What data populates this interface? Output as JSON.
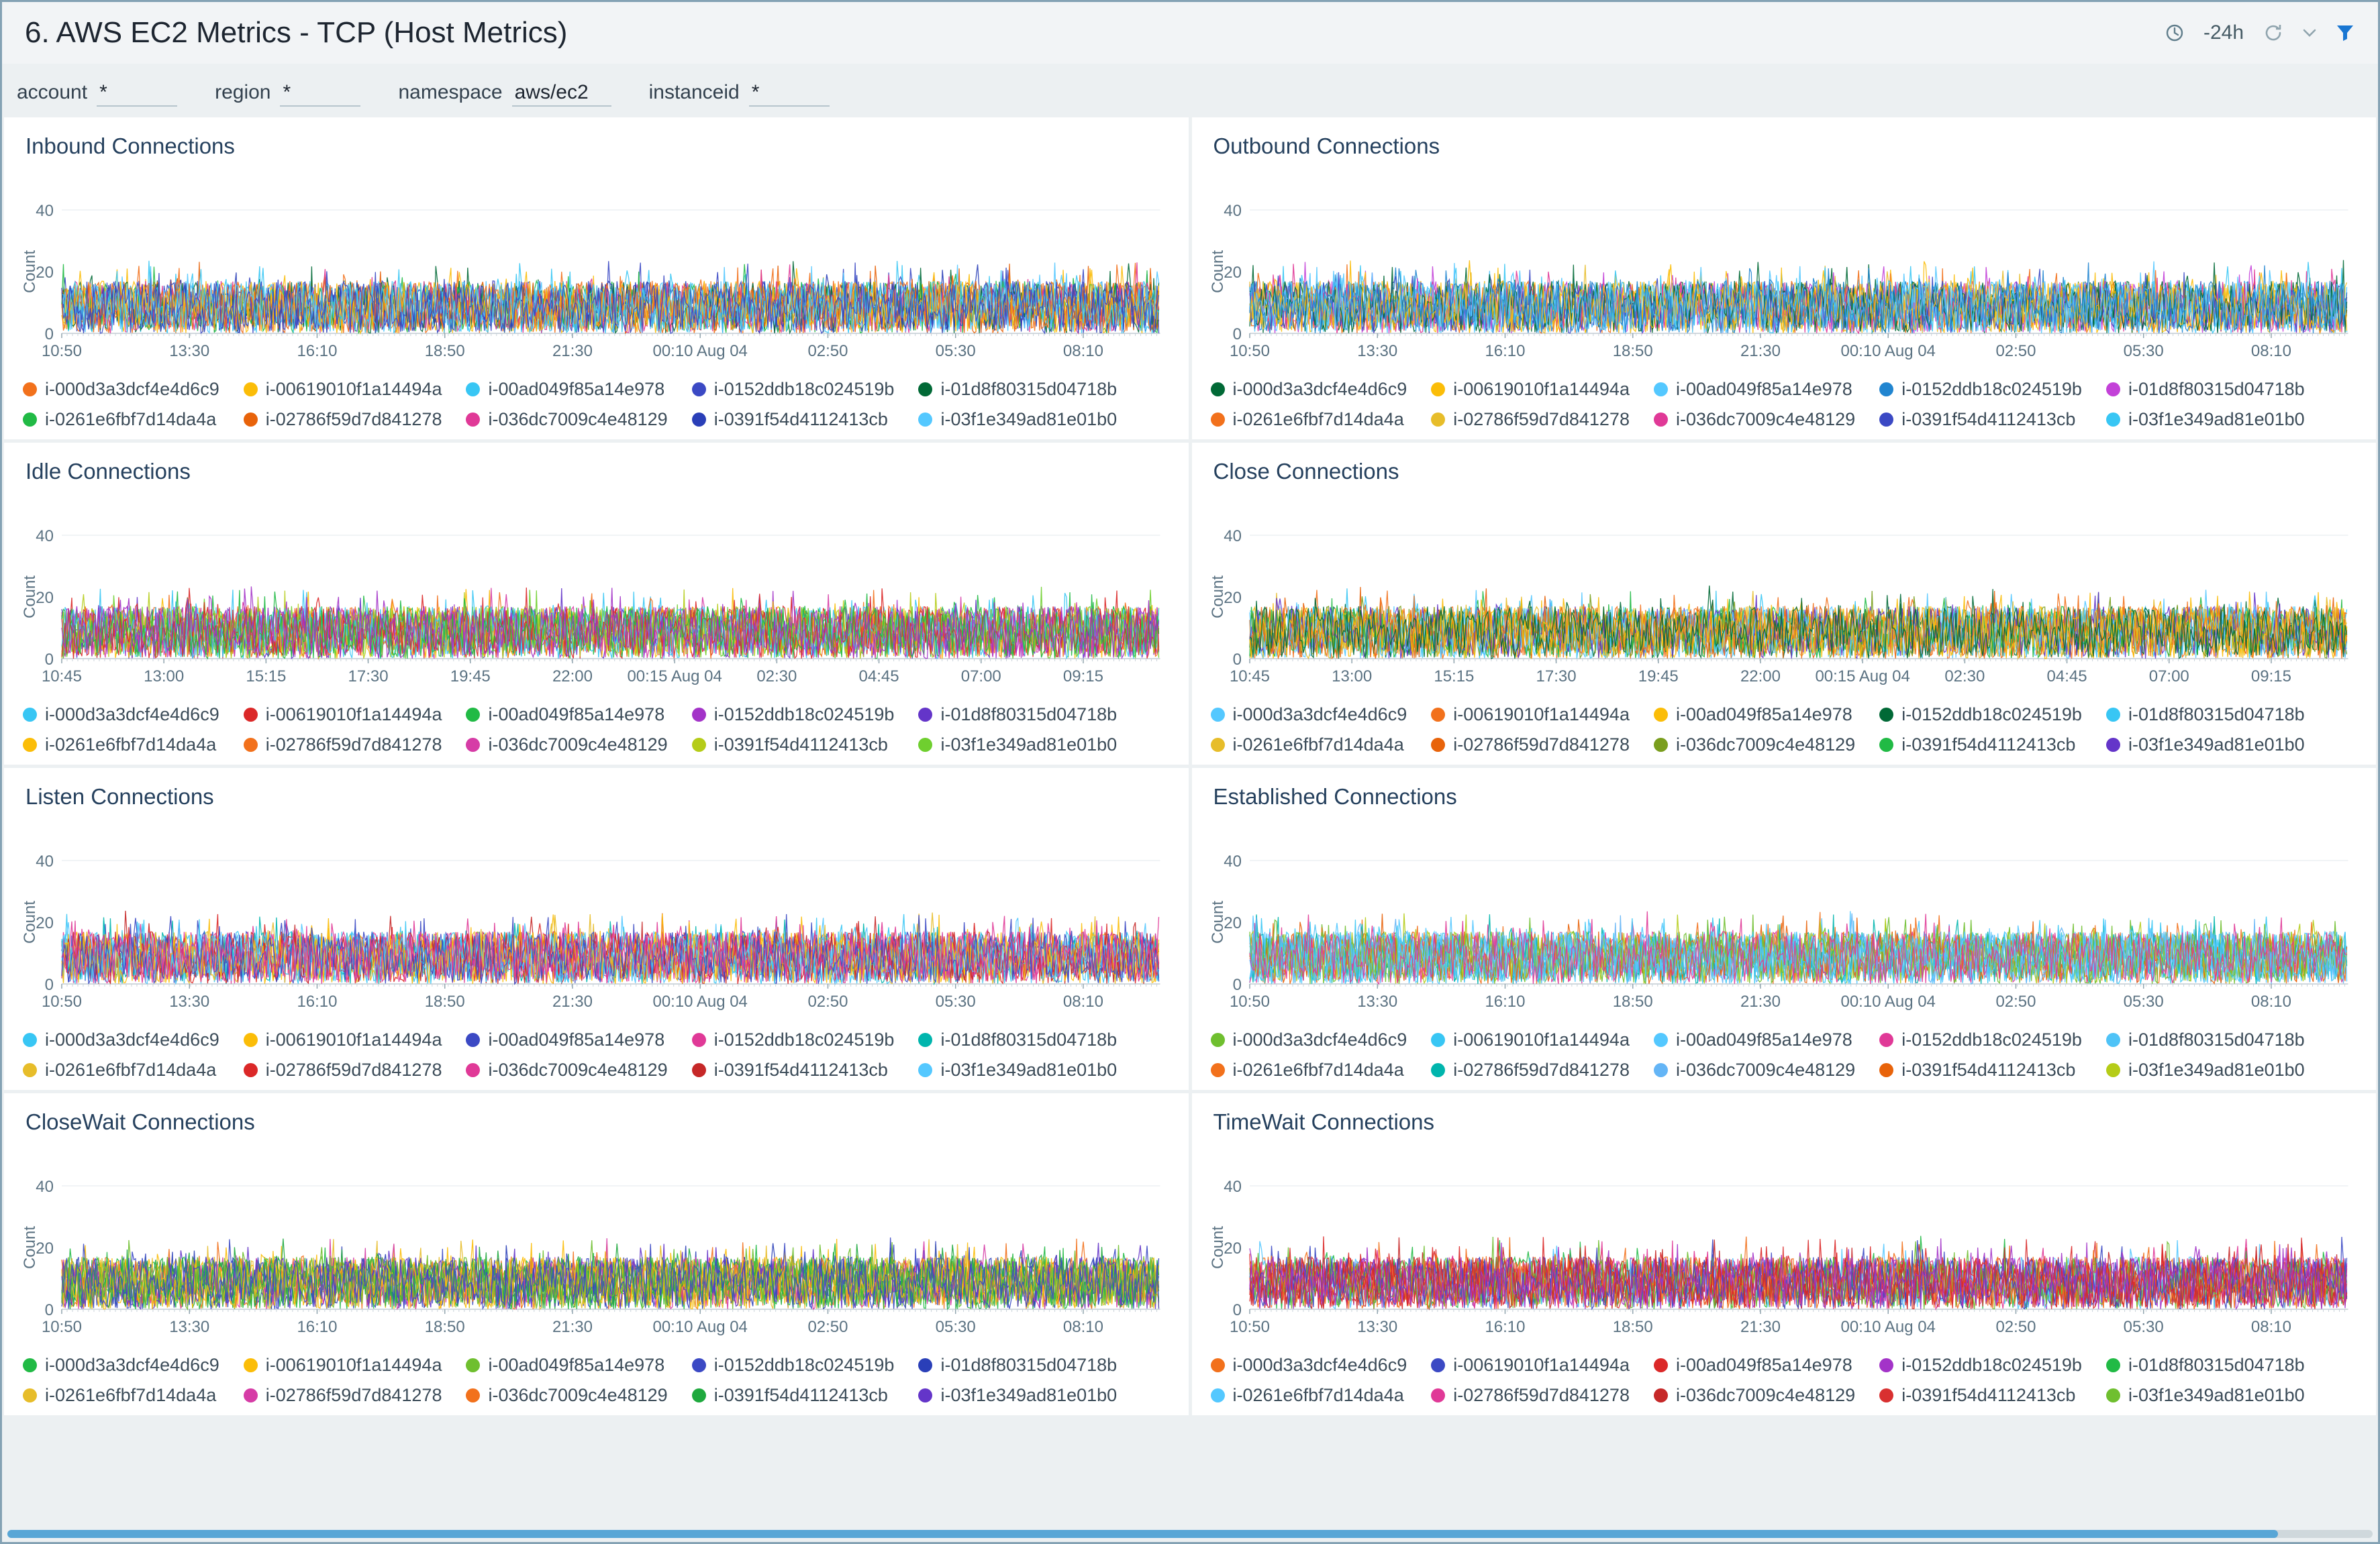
{
  "header": {
    "title": "6. AWS EC2 Metrics - TCP (Host Metrics)",
    "time_range": "-24h"
  },
  "icons": {
    "clock": "clock-icon",
    "refresh": "refresh-icon",
    "chevron": "chevron-down-icon",
    "filter": "filter-funnel-icon"
  },
  "filters": [
    {
      "label": "account",
      "value": "*"
    },
    {
      "label": "region",
      "value": "*"
    },
    {
      "label": "namespace",
      "value": "aws/ec2"
    },
    {
      "label": "instanceid",
      "value": "*"
    }
  ],
  "instances": [
    "i-000d3a3dcf4e4d6c9",
    "i-00619010f1a14494a",
    "i-00ad049f85a14e978",
    "i-0152ddb18c024519b",
    "i-01d8f80315d04718b",
    "i-0261e6fbf7d14da4a",
    "i-02786f59d7d841278",
    "i-036dc7009c4e48129",
    "i-0391f54d4112413cb",
    "i-03f1e349ad81e01b0"
  ],
  "chart_data": [
    {
      "type": "line",
      "title": "Inbound Connections",
      "ylabel": "Count",
      "ylim": [
        0,
        40
      ],
      "yticks": [
        0,
        20,
        40
      ],
      "xticks": [
        "10:50",
        "13:30",
        "16:10",
        "18:50",
        "21:30",
        "00:10 Aug 04",
        "02:50",
        "05:30",
        "08:10"
      ],
      "series": [
        "i-000d3a3dcf4e4d6c9",
        "i-00619010f1a14494a",
        "i-00ad049f85a14e978",
        "i-0152ddb18c024519b",
        "i-01d8f80315d04718b",
        "i-0261e6fbf7d14da4a",
        "i-02786f59d7d841278",
        "i-036dc7009c4e48129",
        "i-0391f54d4112413cb",
        "i-03f1e349ad81e01b0"
      ],
      "colors": [
        "#f2711c",
        "#fbbd08",
        "#38c6f4",
        "#3b49c4",
        "#016936",
        "#21ba45",
        "#e8630a",
        "#e03997",
        "#2a3fb8",
        "#54c8ff"
      ],
      "value_range": [
        0,
        22
      ],
      "pattern": "dense overlapping noisy series oscillating between 0 and ~20",
      "grid": "horizontal line at 40 only",
      "legend_position": "bottom"
    },
    {
      "type": "line",
      "title": "Outbound Connections",
      "ylabel": "Count",
      "ylim": [
        0,
        40
      ],
      "yticks": [
        0,
        20,
        40
      ],
      "xticks": [
        "10:50",
        "13:30",
        "16:10",
        "18:50",
        "21:30",
        "00:10 Aug 04",
        "02:50",
        "05:30",
        "08:10"
      ],
      "series": [
        "i-000d3a3dcf4e4d6c9",
        "i-00619010f1a14494a",
        "i-00ad049f85a14e978",
        "i-0152ddb18c024519b",
        "i-01d8f80315d04718b",
        "i-0261e6fbf7d14da4a",
        "i-02786f59d7d841278",
        "i-036dc7009c4e48129",
        "i-0391f54d4112413cb",
        "i-03f1e349ad81e01b0"
      ],
      "colors": [
        "#016936",
        "#fbbd08",
        "#54c8ff",
        "#2185d0",
        "#c341d8",
        "#f2711c",
        "#e7bd2a",
        "#e03997",
        "#3b49c4",
        "#38c6f4"
      ],
      "value_range": [
        0,
        22
      ],
      "pattern": "dense overlapping noisy series oscillating between 0 and ~20",
      "grid": "horizontal line at 40 only",
      "legend_position": "bottom"
    },
    {
      "type": "line",
      "title": "Idle Connections",
      "ylabel": "Count",
      "ylim": [
        0,
        40
      ],
      "yticks": [
        0,
        20,
        40
      ],
      "xticks": [
        "10:45",
        "13:00",
        "15:15",
        "17:30",
        "19:45",
        "22:00",
        "00:15 Aug 04",
        "02:30",
        "04:45",
        "07:00",
        "09:15"
      ],
      "series": [
        "i-000d3a3dcf4e4d6c9",
        "i-00619010f1a14494a",
        "i-00ad049f85a14e978",
        "i-0152ddb18c024519b",
        "i-01d8f80315d04718b",
        "i-0261e6fbf7d14da4a",
        "i-02786f59d7d841278",
        "i-036dc7009c4e48129",
        "i-0391f54d4112413cb",
        "i-03f1e349ad81e01b0"
      ],
      "colors": [
        "#38c6f4",
        "#db2828",
        "#21ba45",
        "#a333c8",
        "#6435c9",
        "#fbbd08",
        "#f2711c",
        "#d63ca6",
        "#b5cc18",
        "#6fcf2f"
      ],
      "value_range": [
        0,
        22
      ],
      "pattern": "dense overlapping noisy series oscillating between 0 and ~22",
      "grid": "horizontal line at 40 only",
      "legend_position": "bottom"
    },
    {
      "type": "line",
      "title": "Close Connections",
      "ylabel": "Count",
      "ylim": [
        0,
        40
      ],
      "yticks": [
        0,
        20,
        40
      ],
      "xticks": [
        "10:45",
        "13:00",
        "15:15",
        "17:30",
        "19:45",
        "22:00",
        "00:15 Aug 04",
        "02:30",
        "04:45",
        "07:00",
        "09:15"
      ],
      "series": [
        "i-000d3a3dcf4e4d6c9",
        "i-00619010f1a14494a",
        "i-00ad049f85a14e978",
        "i-0152ddb18c024519b",
        "i-01d8f80315d04718b",
        "i-0261e6fbf7d14da4a",
        "i-02786f59d7d841278",
        "i-036dc7009c4e48129",
        "i-0391f54d4112413cb",
        "i-03f1e349ad81e01b0"
      ],
      "colors": [
        "#54c8ff",
        "#f2711c",
        "#fbbd08",
        "#016936",
        "#38c6f4",
        "#e7bd2a",
        "#e8630a",
        "#7a9e1e",
        "#21ba45",
        "#6435c9"
      ],
      "value_range": [
        0,
        22
      ],
      "pattern": "dense overlapping noisy series oscillating between 0 and ~22",
      "grid": "horizontal line at 40 only",
      "legend_position": "bottom"
    },
    {
      "type": "line",
      "title": "Listen Connections",
      "ylabel": "Count",
      "ylim": [
        0,
        40
      ],
      "yticks": [
        0,
        20,
        40
      ],
      "xticks": [
        "10:50",
        "13:30",
        "16:10",
        "18:50",
        "21:30",
        "00:10 Aug 04",
        "02:50",
        "05:30",
        "08:10"
      ],
      "series": [
        "i-000d3a3dcf4e4d6c9",
        "i-00619010f1a14494a",
        "i-00ad049f85a14e978",
        "i-0152ddb18c024519b",
        "i-01d8f80315d04718b",
        "i-0261e6fbf7d14da4a",
        "i-02786f59d7d841278",
        "i-036dc7009c4e48129",
        "i-0391f54d4112413cb",
        "i-03f1e349ad81e01b0"
      ],
      "colors": [
        "#38c6f4",
        "#fbbd08",
        "#3b49c4",
        "#e03997",
        "#00b5ad",
        "#e7bd2a",
        "#db2828",
        "#e03997",
        "#c62828",
        "#54c8ff"
      ],
      "value_range": [
        0,
        22
      ],
      "pattern": "dense overlapping noisy series oscillating between 0 and ~20",
      "grid": "horizontal line at 40 only",
      "legend_position": "bottom"
    },
    {
      "type": "line",
      "title": "Established Connections",
      "ylabel": "Count",
      "ylim": [
        0,
        40
      ],
      "yticks": [
        0,
        20,
        40
      ],
      "xticks": [
        "10:50",
        "13:30",
        "16:10",
        "18:50",
        "21:30",
        "00:10 Aug 04",
        "02:50",
        "05:30",
        "08:10"
      ],
      "series": [
        "i-000d3a3dcf4e4d6c9",
        "i-00619010f1a14494a",
        "i-00ad049f85a14e978",
        "i-0152ddb18c024519b",
        "i-01d8f80315d04718b",
        "i-0261e6fbf7d14da4a",
        "i-02786f59d7d841278",
        "i-036dc7009c4e48129",
        "i-0391f54d4112413cb",
        "i-03f1e349ad81e01b0"
      ],
      "colors": [
        "#6fbf2f",
        "#38c6f4",
        "#54c8ff",
        "#e03997",
        "#4fc3f7",
        "#f2711c",
        "#00b5ad",
        "#64b5f6",
        "#e8630a",
        "#b5cc18"
      ],
      "value_range": [
        0,
        22
      ],
      "pattern": "dense overlapping noisy series oscillating between 0 and ~20",
      "grid": "horizontal line at 40 only",
      "legend_position": "bottom"
    },
    {
      "type": "line",
      "title": "CloseWait Connections",
      "ylabel": "Count",
      "ylim": [
        0,
        40
      ],
      "yticks": [
        0,
        20,
        40
      ],
      "xticks": [
        "10:50",
        "13:30",
        "16:10",
        "18:50",
        "21:30",
        "00:10 Aug 04",
        "02:50",
        "05:30",
        "08:10"
      ],
      "series": [
        "i-000d3a3dcf4e4d6c9",
        "i-00619010f1a14494a",
        "i-00ad049f85a14e978",
        "i-0152ddb18c024519b",
        "i-01d8f80315d04718b",
        "i-0261e6fbf7d14da4a",
        "i-02786f59d7d841278",
        "i-036dc7009c4e48129",
        "i-0391f54d4112413cb",
        "i-03f1e349ad81e01b0"
      ],
      "colors": [
        "#21ba45",
        "#fbbd08",
        "#6fbf2f",
        "#3b49c4",
        "#2a3fb8",
        "#e7bd2a",
        "#d63ca6",
        "#f2711c",
        "#1fa93e",
        "#6435c9"
      ],
      "value_range": [
        0,
        22
      ],
      "pattern": "dense overlapping noisy series oscillating between 0 and ~20",
      "grid": "horizontal line at 40 only",
      "legend_position": "bottom"
    },
    {
      "type": "line",
      "title": "TimeWait Connections",
      "ylabel": "Count",
      "ylim": [
        0,
        40
      ],
      "yticks": [
        0,
        20,
        40
      ],
      "xticks": [
        "10:50",
        "13:30",
        "16:10",
        "18:50",
        "21:30",
        "00:10 Aug 04",
        "02:50",
        "05:30",
        "08:10"
      ],
      "series": [
        "i-000d3a3dcf4e4d6c9",
        "i-00619010f1a14494a",
        "i-00ad049f85a14e978",
        "i-0152ddb18c024519b",
        "i-01d8f80315d04718b",
        "i-0261e6fbf7d14da4a",
        "i-02786f59d7d841278",
        "i-036dc7009c4e48129",
        "i-0391f54d4112413cb",
        "i-03f1e349ad81e01b0"
      ],
      "colors": [
        "#f2711c",
        "#3b49c4",
        "#db2828",
        "#a333c8",
        "#21ba45",
        "#54c8ff",
        "#e03997",
        "#c62828",
        "#d93030",
        "#6fbf2f"
      ],
      "value_range": [
        0,
        22
      ],
      "pattern": "dense overlapping noisy series oscillating between 0 and ~18",
      "grid": "horizontal line at 40 only",
      "legend_position": "bottom"
    }
  ]
}
